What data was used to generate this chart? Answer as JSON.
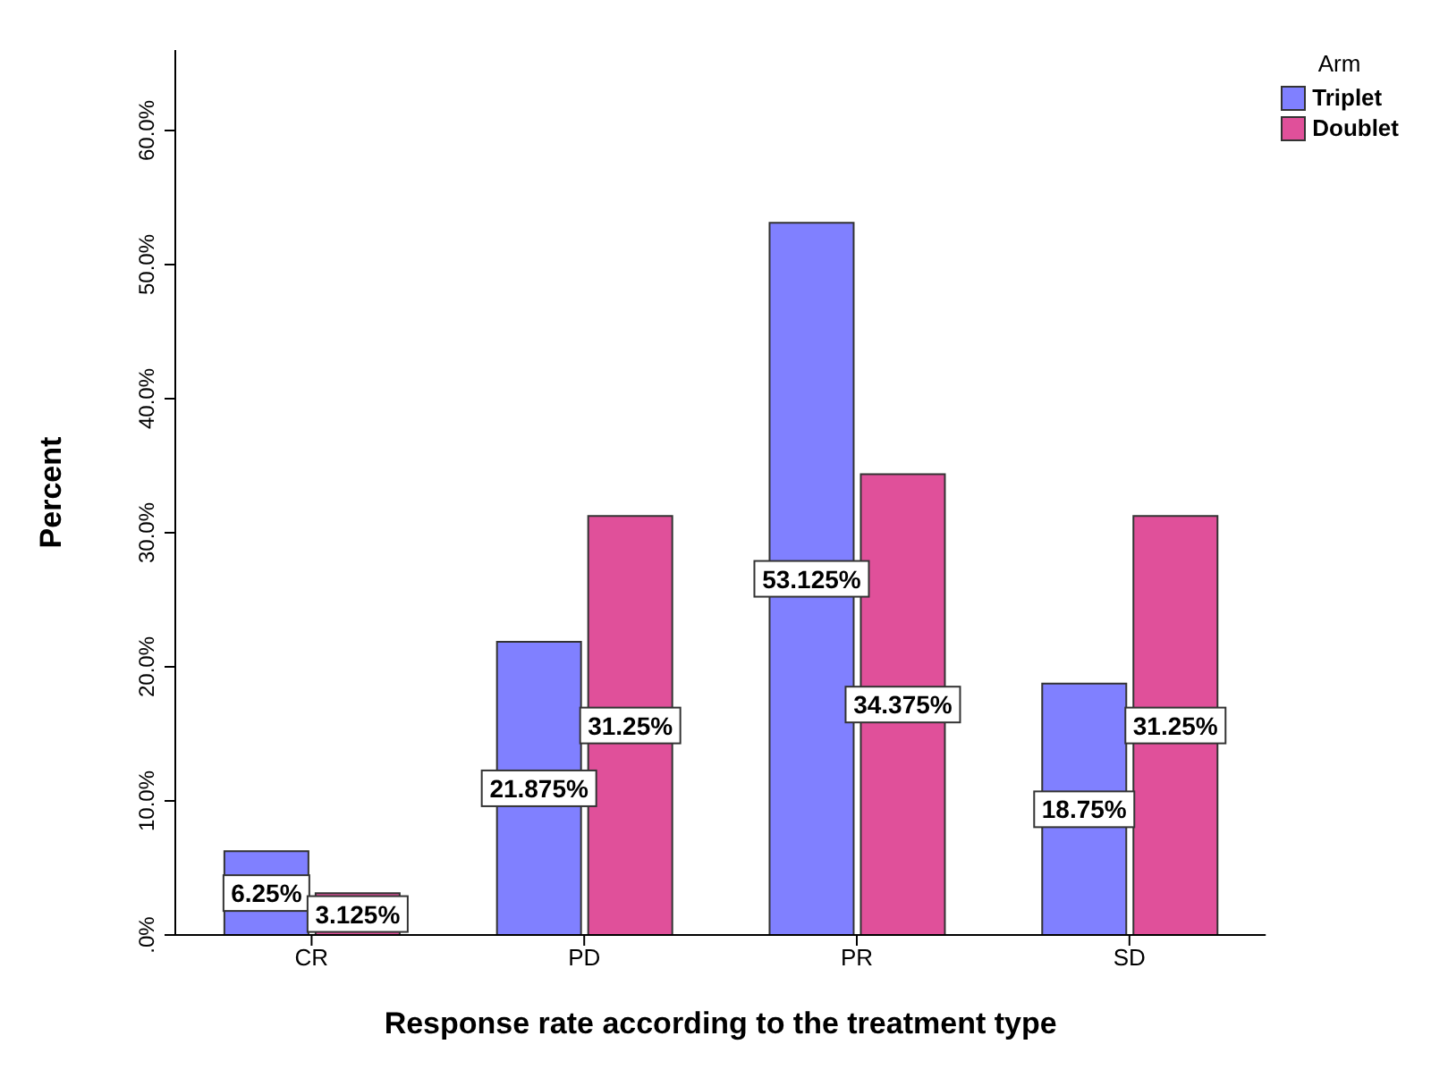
{
  "chart_data": {
    "type": "bar",
    "xlabel": "Response rate according to the treatment type",
    "ylabel": "Percent",
    "legend_title": "Arm",
    "legend": "top right",
    "categories": [
      "CR",
      "PD",
      "PR",
      "SD"
    ],
    "series": [
      {
        "name": "Triplet",
        "color": "#8080ff",
        "values": [
          6.25,
          21.875,
          53.125,
          18.75
        ],
        "value_labels": [
          "6.25%",
          "21.875%",
          "53.125%",
          "18.75%"
        ]
      },
      {
        "name": "Doublet",
        "color": "#e0509a",
        "values": [
          3.125,
          31.25,
          34.375,
          31.25
        ],
        "value_labels": [
          "3.125%",
          "31.25%",
          "34.375%",
          "31.25%"
        ]
      }
    ],
    "ylim": [
      0,
      66
    ],
    "yticks": [
      {
        "value": 0,
        "label": ".0%"
      },
      {
        "value": 10,
        "label": "10.0%"
      },
      {
        "value": 20,
        "label": "20.0%"
      },
      {
        "value": 30,
        "label": "30.0%"
      },
      {
        "value": 40,
        "label": "40.0%"
      },
      {
        "value": 50,
        "label": "50.0%"
      },
      {
        "value": 60,
        "label": "60.0%"
      }
    ]
  }
}
